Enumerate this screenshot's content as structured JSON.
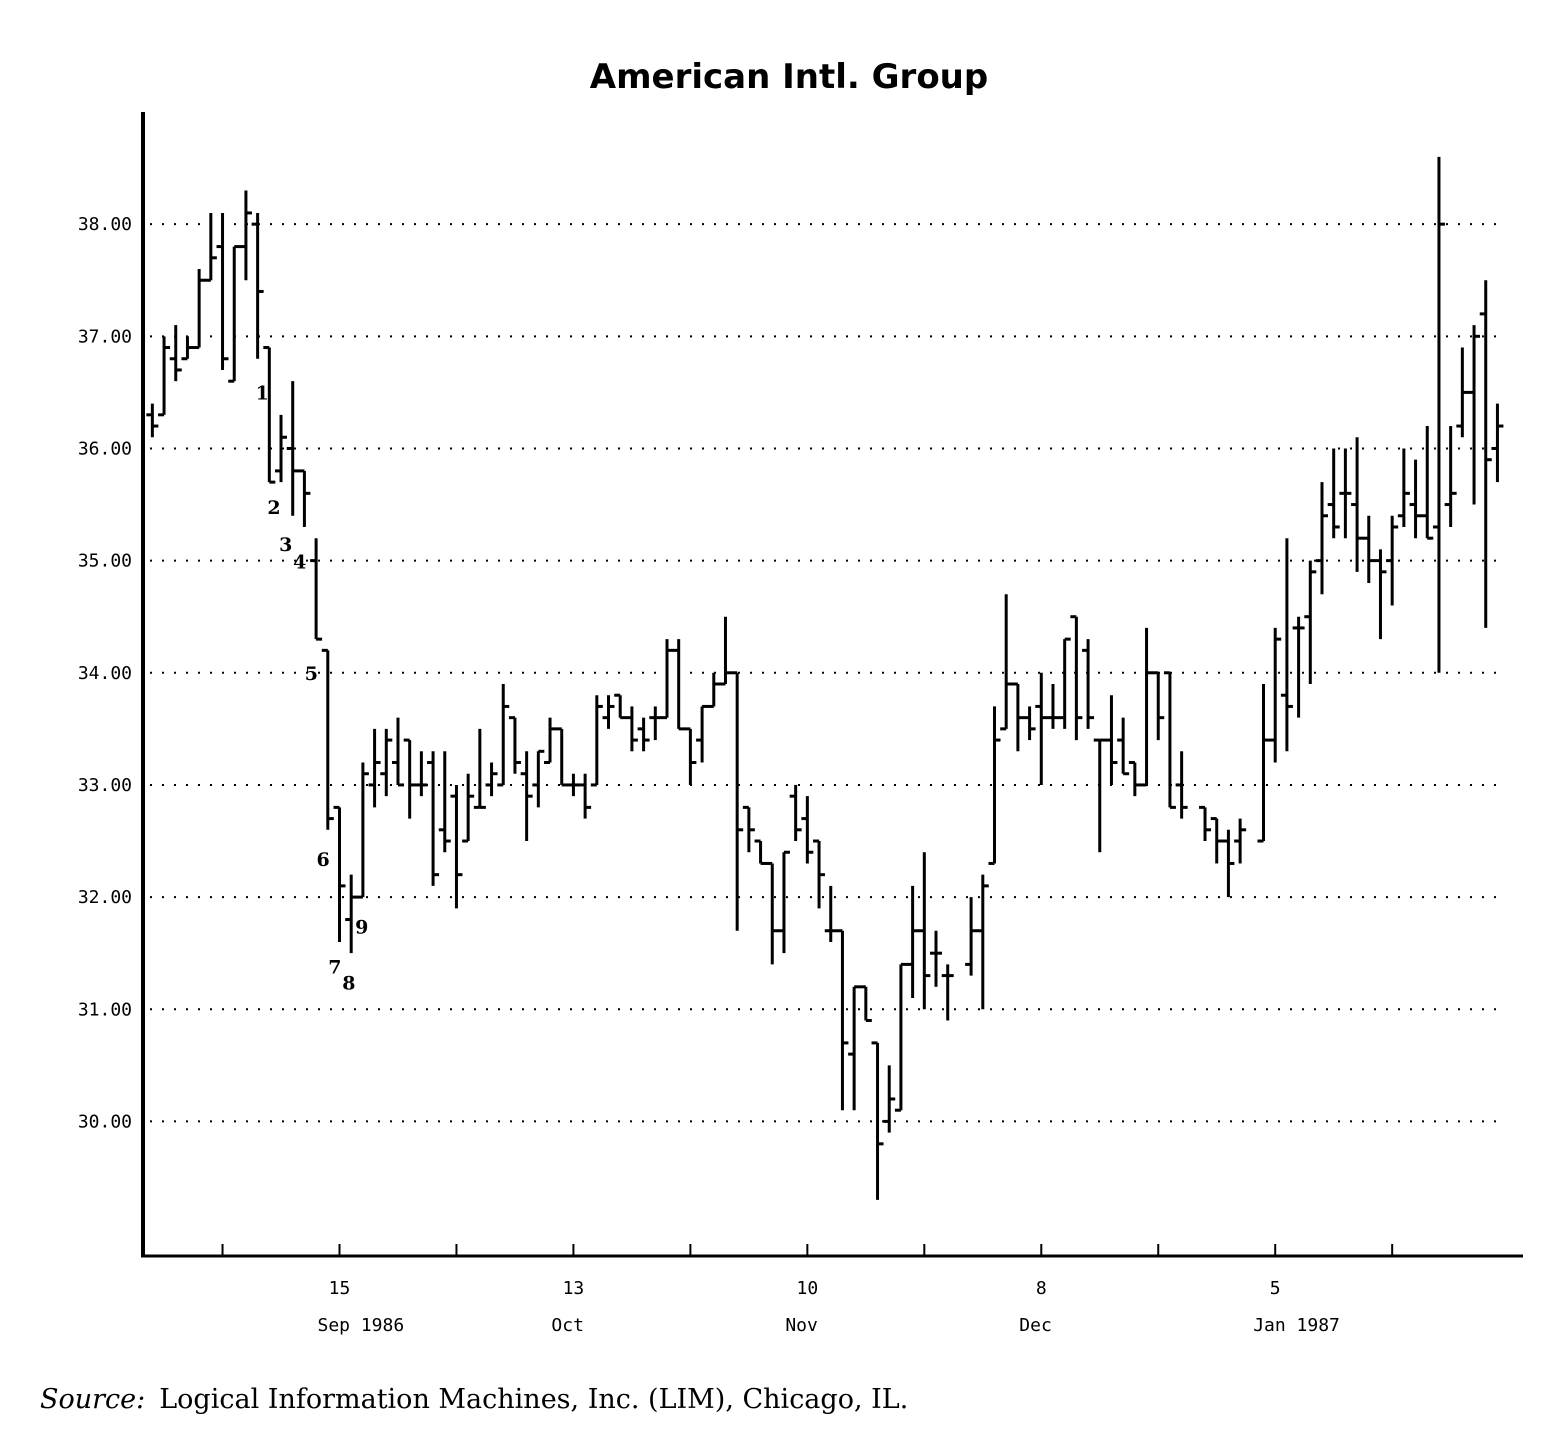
{
  "chart_data": {
    "type": "ohlc",
    "title": "American Intl. Group",
    "color": "#000000",
    "grid": true,
    "grid_style": "dotted",
    "xlim": [
      -0.8,
      117.1
    ],
    "ylim": [
      28.8,
      39.0
    ],
    "yticks": [
      {
        "value": 30,
        "label": "30.00"
      },
      {
        "value": 31,
        "label": "31.00"
      },
      {
        "value": 32,
        "label": "32.00"
      },
      {
        "value": 33,
        "label": "33.00"
      },
      {
        "value": 34,
        "label": "34.00"
      },
      {
        "value": 35,
        "label": "35.00"
      },
      {
        "value": 36,
        "label": "36.00"
      },
      {
        "value": 37,
        "label": "37.00"
      },
      {
        "value": 38,
        "label": "38.00"
      }
    ],
    "xticks": [
      {
        "value": 16,
        "label": "15"
      },
      {
        "value": 36,
        "label": "13"
      },
      {
        "value": 56,
        "label": "10"
      },
      {
        "value": 76,
        "label": "8"
      },
      {
        "value": 96,
        "label": "5"
      }
    ],
    "xtick_sublabels": [
      "Sep 1986",
      "Oct",
      "Nov",
      "Dec",
      "Jan 1987"
    ],
    "xticks_minor": [
      6,
      26,
      46,
      66,
      86,
      106
    ],
    "x": [
      0,
      1,
      2,
      3,
      4,
      5,
      6,
      7,
      8,
      9,
      10,
      11,
      12,
      13,
      14,
      15,
      16,
      17,
      18,
      19,
      20,
      21,
      22,
      23,
      24,
      25,
      26,
      27,
      28,
      29,
      30,
      31,
      32,
      33,
      34,
      35,
      36,
      37,
      38,
      39,
      40,
      41,
      42,
      43,
      44,
      45,
      46,
      47,
      48,
      49,
      50,
      51,
      52,
      53,
      54,
      55,
      56,
      57,
      58,
      59,
      60,
      61,
      62,
      63,
      64,
      65,
      66,
      67,
      68,
      70,
      71,
      72,
      73,
      74,
      75,
      76,
      77,
      78,
      79,
      80,
      81,
      82,
      83,
      84,
      85,
      86,
      87,
      88,
      90,
      91,
      92,
      93,
      95,
      96,
      97,
      98,
      99,
      100,
      101,
      102,
      103,
      104,
      105,
      106,
      107,
      108,
      109,
      110,
      111,
      112,
      113,
      114,
      115
    ],
    "open": [
      36.3,
      36.3,
      36.8,
      36.8,
      36.9,
      37.5,
      37.8,
      36.6,
      37.8,
      38.0,
      36.9,
      35.8,
      36.0,
      35.8,
      35.0,
      34.2,
      32.8,
      31.8,
      32.0,
      33.0,
      33.1,
      33.2,
      33.4,
      33.0,
      33.2,
      32.6,
      32.9,
      32.5,
      32.8,
      33.0,
      33.0,
      33.6,
      33.1,
      33.0,
      33.2,
      33.5,
      33.0,
      33.0,
      33.0,
      33.6,
      33.8,
      33.6,
      33.5,
      33.6,
      33.6,
      34.2,
      33.5,
      33.4,
      33.7,
      33.9,
      34.0,
      32.8,
      32.5,
      32.3,
      31.7,
      32.9,
      32.7,
      32.5,
      31.7,
      31.7,
      30.6,
      31.2,
      30.7,
      30.0,
      30.1,
      31.4,
      31.7,
      31.5,
      31.3,
      31.4,
      31.7,
      32.3,
      33.5,
      33.9,
      33.6,
      33.7,
      33.6,
      33.6,
      34.5,
      34.2,
      33.4,
      33.4,
      33.4,
      33.2,
      33.0,
      34.0,
      34.0,
      33.0,
      32.8,
      32.7,
      32.5,
      32.5,
      32.5,
      33.4,
      33.8,
      34.4,
      34.5,
      35.0,
      35.5,
      35.6,
      35.5,
      35.2,
      35.0,
      35.0,
      35.4,
      35.5,
      35.4,
      35.3,
      35.5,
      36.2,
      36.5,
      37.2,
      36.0
    ],
    "high": [
      36.4,
      37.0,
      37.1,
      37.0,
      37.6,
      38.1,
      38.1,
      37.8,
      38.3,
      38.1,
      36.9,
      36.3,
      36.6,
      35.8,
      35.2,
      34.2,
      32.8,
      32.2,
      33.2,
      33.5,
      33.5,
      33.6,
      33.4,
      33.3,
      33.3,
      33.3,
      33.0,
      33.1,
      33.5,
      33.2,
      33.9,
      33.6,
      33.3,
      33.3,
      33.6,
      33.5,
      33.1,
      33.1,
      33.8,
      33.8,
      33.8,
      33.7,
      33.6,
      33.7,
      34.3,
      34.3,
      33.5,
      33.7,
      34.0,
      34.5,
      34.0,
      32.8,
      32.5,
      32.3,
      32.4,
      33.0,
      32.9,
      32.5,
      32.1,
      31.7,
      31.2,
      31.2,
      30.7,
      30.5,
      31.4,
      32.1,
      32.4,
      31.7,
      31.4,
      32.0,
      32.2,
      33.7,
      34.7,
      33.9,
      33.7,
      34.0,
      33.9,
      34.3,
      34.5,
      34.3,
      33.4,
      33.8,
      33.6,
      33.2,
      34.4,
      34.0,
      34.0,
      33.3,
      32.8,
      32.7,
      32.6,
      32.7,
      33.9,
      34.4,
      35.2,
      34.5,
      35.0,
      35.7,
      36.0,
      36.0,
      36.1,
      35.4,
      35.1,
      35.4,
      36.0,
      35.9,
      36.2,
      38.6,
      36.2,
      36.9,
      37.1,
      37.5,
      36.4
    ],
    "low": [
      36.1,
      36.3,
      36.6,
      36.8,
      36.9,
      37.5,
      36.7,
      36.6,
      37.5,
      36.8,
      35.7,
      35.7,
      35.4,
      35.3,
      34.3,
      32.6,
      31.6,
      31.5,
      32.0,
      32.8,
      32.9,
      33.0,
      32.7,
      32.9,
      32.1,
      32.4,
      31.9,
      32.5,
      32.8,
      32.9,
      33.0,
      33.1,
      32.5,
      32.8,
      33.2,
      33.0,
      32.9,
      32.7,
      33.0,
      33.5,
      33.6,
      33.3,
      33.3,
      33.4,
      33.6,
      33.5,
      33.0,
      33.2,
      33.7,
      33.9,
      31.7,
      32.4,
      32.3,
      31.4,
      31.5,
      32.5,
      32.3,
      31.9,
      31.6,
      30.1,
      30.1,
      30.9,
      29.3,
      29.9,
      30.1,
      31.1,
      31.0,
      31.2,
      30.9,
      31.3,
      31.0,
      32.3,
      33.5,
      33.3,
      33.4,
      33.0,
      33.5,
      33.5,
      33.4,
      33.5,
      32.4,
      33.0,
      33.1,
      32.9,
      33.0,
      33.4,
      32.8,
      32.7,
      32.5,
      32.3,
      32.0,
      32.3,
      32.5,
      33.2,
      33.3,
      33.6,
      33.9,
      34.7,
      35.2,
      35.2,
      34.9,
      34.8,
      34.3,
      34.6,
      35.3,
      35.2,
      35.2,
      34.0,
      35.3,
      36.1,
      35.5,
      34.4,
      35.7
    ],
    "close": [
      36.2,
      36.9,
      36.7,
      36.9,
      37.5,
      37.7,
      36.8,
      37.8,
      38.1,
      37.4,
      35.7,
      36.1,
      35.8,
      35.6,
      34.3,
      32.7,
      32.1,
      32.0,
      33.1,
      33.2,
      33.4,
      33.0,
      33.0,
      33.0,
      32.2,
      32.5,
      32.2,
      32.9,
      32.8,
      33.1,
      33.7,
      33.2,
      32.9,
      33.3,
      33.5,
      33.0,
      33.0,
      32.8,
      33.7,
      33.7,
      33.6,
      33.4,
      33.4,
      33.6,
      34.2,
      33.5,
      33.2,
      33.7,
      33.9,
      34.0,
      32.6,
      32.6,
      32.3,
      31.7,
      32.4,
      32.6,
      32.4,
      32.2,
      31.7,
      30.7,
      31.2,
      30.9,
      29.8,
      30.2,
      31.4,
      31.7,
      31.3,
      31.5,
      31.3,
      31.7,
      32.1,
      33.4,
      33.9,
      33.6,
      33.5,
      33.6,
      33.6,
      34.3,
      33.6,
      33.6,
      33.4,
      33.2,
      33.1,
      33.0,
      34.0,
      33.6,
      32.8,
      32.8,
      32.6,
      32.5,
      32.3,
      32.6,
      33.4,
      34.3,
      33.7,
      34.4,
      34.9,
      35.4,
      35.3,
      35.6,
      35.2,
      35.0,
      34.9,
      35.3,
      35.6,
      35.4,
      35.2,
      38.0,
      35.6,
      36.5,
      37.0,
      35.9,
      36.2
    ],
    "annotations": [
      {
        "text": "1",
        "x": 9.4,
        "y": 36.5
      },
      {
        "text": "2",
        "x": 10.4,
        "y": 35.48
      },
      {
        "text": "3",
        "x": 11.4,
        "y": 35.15
      },
      {
        "text": "4",
        "x": 12.6,
        "y": 34.99
      },
      {
        "text": "5",
        "x": 13.6,
        "y": 34.0
      },
      {
        "text": "6",
        "x": 14.6,
        "y": 32.34
      },
      {
        "text": "7",
        "x": 15.6,
        "y": 31.38
      },
      {
        "text": "8",
        "x": 16.8,
        "y": 31.24
      },
      {
        "text": "9",
        "x": 17.9,
        "y": 31.74
      }
    ]
  },
  "footer": {
    "label": "Source:",
    "text": "Logical Information Machines, Inc. (LIM), Chicago, IL."
  }
}
